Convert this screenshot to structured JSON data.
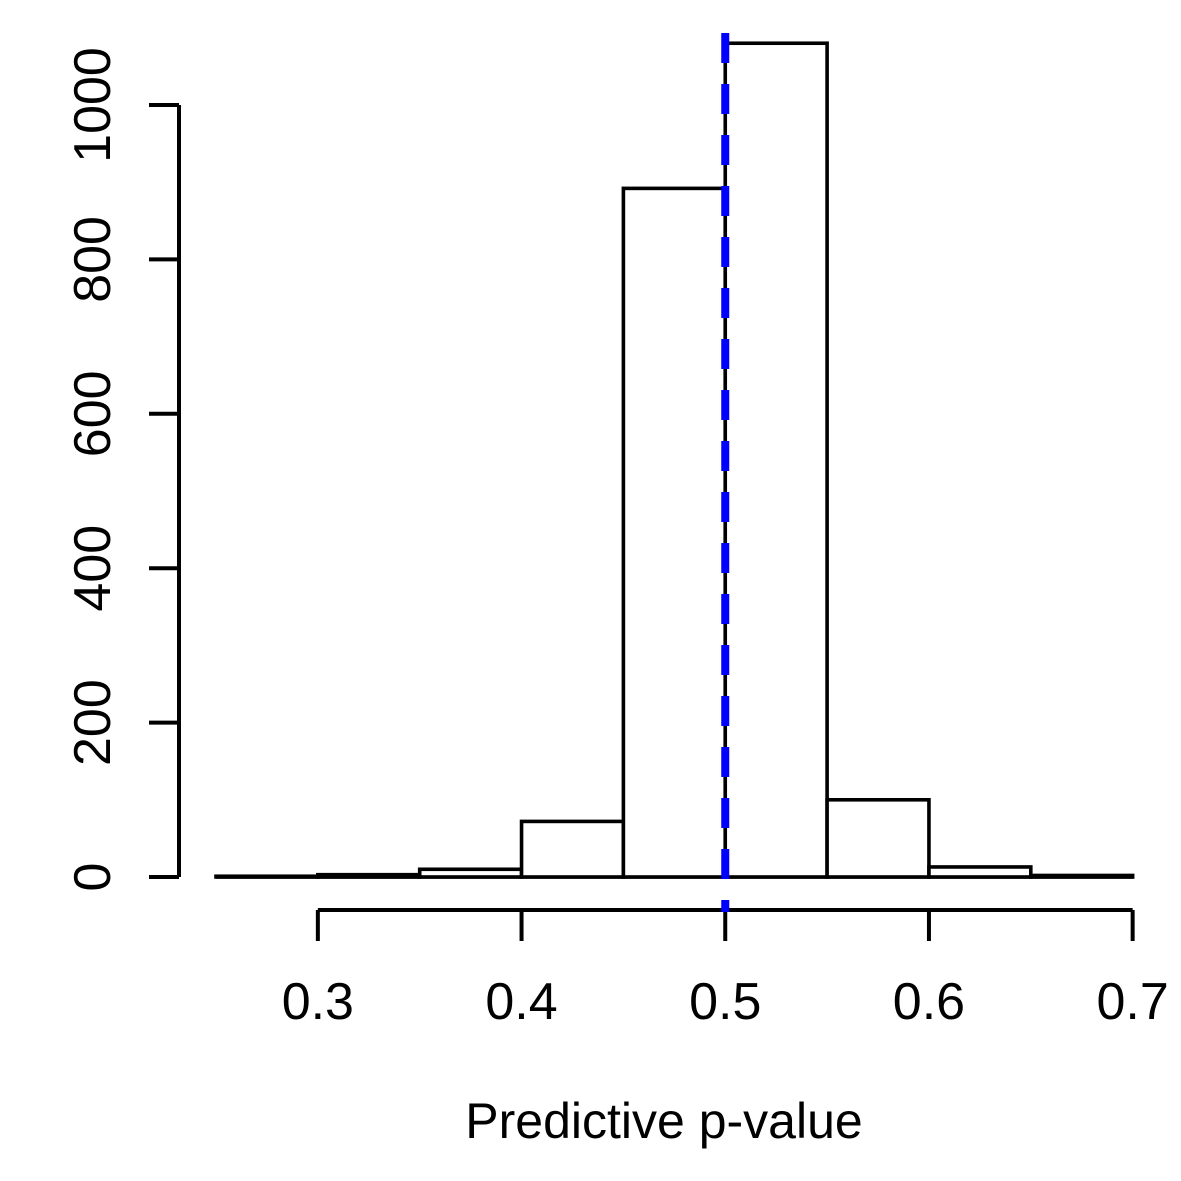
{
  "figure": {
    "title": "",
    "background": "#FFFFFF"
  },
  "chart_data": {
    "type": "bar",
    "subtype": "histogram",
    "title": "",
    "xlabel": "Predictive p-value",
    "ylabel": "",
    "xlim": [
      0.25,
      0.7
    ],
    "ylim": [
      0,
      1080
    ],
    "grid": false,
    "legend": null,
    "bin_width": 0.05,
    "bins": [
      {
        "from": 0.25,
        "to": 0.3,
        "count": 1
      },
      {
        "from": 0.3,
        "to": 0.35,
        "count": 3
      },
      {
        "from": 0.35,
        "to": 0.4,
        "count": 10
      },
      {
        "from": 0.4,
        "to": 0.45,
        "count": 72
      },
      {
        "from": 0.45,
        "to": 0.5,
        "count": 892
      },
      {
        "from": 0.5,
        "to": 0.55,
        "count": 1080
      },
      {
        "from": 0.55,
        "to": 0.6,
        "count": 100
      },
      {
        "from": 0.6,
        "to": 0.65,
        "count": 13
      },
      {
        "from": 0.65,
        "to": 0.7,
        "count": 2
      }
    ],
    "x_ticks": [
      0.3,
      0.4,
      0.5,
      0.6,
      0.7
    ],
    "x_tick_labels": [
      "0.3",
      "0.4",
      "0.5",
      "0.6",
      "0.7"
    ],
    "y_ticks": [
      0,
      200,
      400,
      600,
      800,
      1000
    ],
    "y_tick_labels": [
      "0",
      "200",
      "400",
      "600",
      "800",
      "1000"
    ],
    "reference_line": {
      "x": 0.5,
      "color": "#0000FF",
      "style": "dashed"
    },
    "bar_fill": "#FFFFFF",
    "bar_stroke": "#000000",
    "axis_color": "#000000",
    "text_color": "#000000"
  }
}
